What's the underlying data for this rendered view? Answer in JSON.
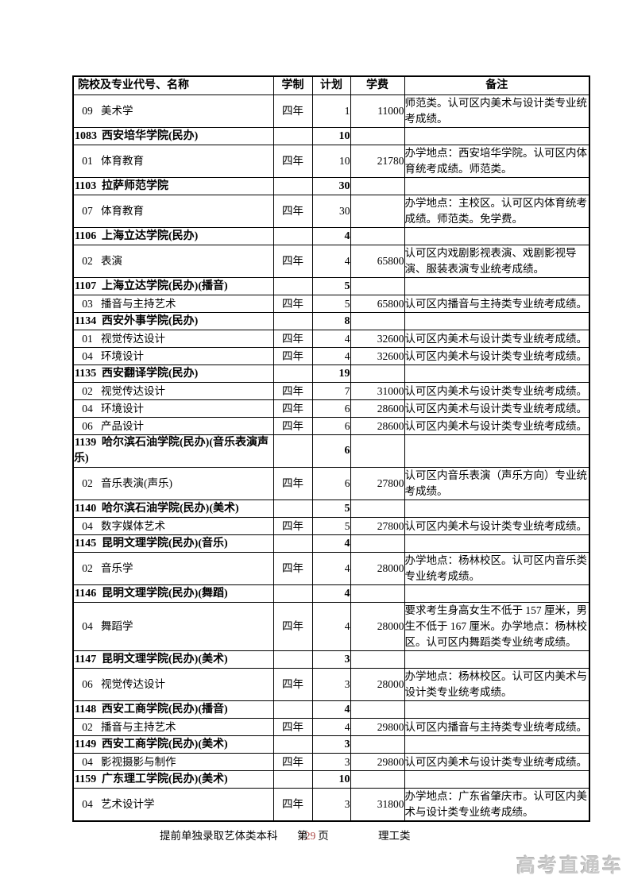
{
  "table": {
    "columns": [
      "院校及专业代号、名称",
      "学制",
      "计划",
      "学费",
      "备注"
    ],
    "rows": [
      {
        "type": "major",
        "code": "09",
        "name": "美术学",
        "duration": "四年",
        "plan": "1",
        "tuition": "11000",
        "remark": "师范类。认可区内美术与设计类专业统考成绩。"
      },
      {
        "type": "institution",
        "code": "1083",
        "name": "西安培华学院(民办)",
        "duration": "",
        "plan": "10",
        "tuition": "",
        "remark": ""
      },
      {
        "type": "major",
        "code": "01",
        "name": "体育教育",
        "duration": "四年",
        "plan": "10",
        "tuition": "21780",
        "remark": "办学地点：西安培华学院。认可区内体育统考成绩。师范类。"
      },
      {
        "type": "institution",
        "code": "1103",
        "name": "拉萨师范学院",
        "duration": "",
        "plan": "30",
        "tuition": "",
        "remark": ""
      },
      {
        "type": "major",
        "code": "07",
        "name": "体育教育",
        "duration": "四年",
        "plan": "30",
        "tuition": "",
        "remark": "办学地点：主校区。认可区内体育统考成绩。师范类。免学费。"
      },
      {
        "type": "institution",
        "code": "1106",
        "name": "上海立达学院(民办)",
        "duration": "",
        "plan": "4",
        "tuition": "",
        "remark": ""
      },
      {
        "type": "major",
        "code": "02",
        "name": "表演",
        "duration": "四年",
        "plan": "4",
        "tuition": "65800",
        "remark": "认可区内戏剧影视表演、戏剧影视导演、服装表演专业统考成绩。"
      },
      {
        "type": "institution",
        "code": "1107",
        "name": "上海立达学院(民办)(播音)",
        "duration": "",
        "plan": "5",
        "tuition": "",
        "remark": ""
      },
      {
        "type": "major",
        "code": "03",
        "name": "播音与主持艺术",
        "duration": "四年",
        "plan": "5",
        "tuition": "65800",
        "remark": "认可区内播音与主持类专业统考成绩。"
      },
      {
        "type": "institution",
        "code": "1134",
        "name": "西安外事学院(民办)",
        "duration": "",
        "plan": "8",
        "tuition": "",
        "remark": ""
      },
      {
        "type": "major",
        "code": "01",
        "name": "视觉传达设计",
        "duration": "四年",
        "plan": "4",
        "tuition": "32600",
        "remark": "认可区内美术与设计类专业统考成绩。"
      },
      {
        "type": "major",
        "code": "04",
        "name": "环境设计",
        "duration": "四年",
        "plan": "4",
        "tuition": "32600",
        "remark": "认可区内美术与设计类专业统考成绩。"
      },
      {
        "type": "institution",
        "code": "1135",
        "name": "西安翻译学院(民办)",
        "duration": "",
        "plan": "19",
        "tuition": "",
        "remark": ""
      },
      {
        "type": "major",
        "code": "02",
        "name": "视觉传达设计",
        "duration": "四年",
        "plan": "7",
        "tuition": "31000",
        "remark": "认可区内美术与设计类专业统考成绩。"
      },
      {
        "type": "major",
        "code": "04",
        "name": "环境设计",
        "duration": "四年",
        "plan": "6",
        "tuition": "28600",
        "remark": "认可区内美术与设计类专业统考成绩。"
      },
      {
        "type": "major",
        "code": "06",
        "name": "产品设计",
        "duration": "四年",
        "plan": "6",
        "tuition": "28600",
        "remark": "认可区内美术与设计类专业统考成绩。"
      },
      {
        "type": "institution",
        "code": "1139",
        "name": "哈尔滨石油学院(民办)(音乐表演声乐)",
        "duration": "",
        "plan": "6",
        "tuition": "",
        "remark": ""
      },
      {
        "type": "major",
        "code": "02",
        "name": "音乐表演(声乐)",
        "duration": "四年",
        "plan": "6",
        "tuition": "27800",
        "remark": "认可区内音乐表演（声乐方向）专业统考成绩。"
      },
      {
        "type": "institution",
        "code": "1140",
        "name": "哈尔滨石油学院(民办)(美术)",
        "duration": "",
        "plan": "5",
        "tuition": "",
        "remark": ""
      },
      {
        "type": "major",
        "code": "04",
        "name": "数字媒体艺术",
        "duration": "四年",
        "plan": "5",
        "tuition": "27800",
        "remark": "认可区内美术与设计类专业统考成绩。"
      },
      {
        "type": "institution",
        "code": "1145",
        "name": "昆明文理学院(民办)(音乐)",
        "duration": "",
        "plan": "4",
        "tuition": "",
        "remark": ""
      },
      {
        "type": "major",
        "code": "02",
        "name": "音乐学",
        "duration": "四年",
        "plan": "4",
        "tuition": "28000",
        "remark": "办学地点：杨林校区。认可区内音乐类专业统考成绩。"
      },
      {
        "type": "institution",
        "code": "1146",
        "name": "昆明文理学院(民办)(舞蹈)",
        "duration": "",
        "plan": "4",
        "tuition": "",
        "remark": ""
      },
      {
        "type": "major",
        "code": "04",
        "name": "舞蹈学",
        "duration": "四年",
        "plan": "4",
        "tuition": "28000",
        "remark": "要求考生身高女生不低于 157 厘米，男生不低于 167 厘米。办学地点：杨林校区。认可区内舞蹈类专业统考成绩。"
      },
      {
        "type": "institution",
        "code": "1147",
        "name": "昆明文理学院(民办)(美术)",
        "duration": "",
        "plan": "3",
        "tuition": "",
        "remark": ""
      },
      {
        "type": "major",
        "code": "06",
        "name": "视觉传达设计",
        "duration": "四年",
        "plan": "3",
        "tuition": "28000",
        "remark": "办学地点：杨林校区。认可区内美术与设计类专业统考成绩。"
      },
      {
        "type": "institution",
        "code": "1148",
        "name": "西安工商学院(民办)(播音)",
        "duration": "",
        "plan": "4",
        "tuition": "",
        "remark": ""
      },
      {
        "type": "major",
        "code": "02",
        "name": "播音与主持艺术",
        "duration": "四年",
        "plan": "4",
        "tuition": "29800",
        "remark": "认可区内播音与主持类专业统考成绩。"
      },
      {
        "type": "institution",
        "code": "1149",
        "name": "西安工商学院(民办)(美术)",
        "duration": "",
        "plan": "3",
        "tuition": "",
        "remark": ""
      },
      {
        "type": "major",
        "code": "04",
        "name": "影视摄影与制作",
        "duration": "四年",
        "plan": "3",
        "tuition": "29800",
        "remark": "认可区内美术与设计类专业统考成绩。"
      },
      {
        "type": "institution",
        "code": "1159",
        "name": "广东理工学院(民办)(美术)",
        "duration": "",
        "plan": "10",
        "tuition": "",
        "remark": ""
      },
      {
        "type": "major",
        "code": "04",
        "name": "艺术设计学",
        "duration": "四年",
        "plan": "3",
        "tuition": "31800",
        "remark": "办学地点：广东省肇庆市。认可区内美术与设计类专业统考成绩。"
      }
    ]
  },
  "footer": {
    "section": "提前单独录取艺体类本科",
    "page_prefix": "第",
    "page_number": "129",
    "page_suffix": "页",
    "category": "理工类"
  },
  "watermark": {
    "text": "高考直通车"
  },
  "colors": {
    "page_number": "#a94442",
    "watermark": "#c8c8c8",
    "border": "#000000",
    "text": "#000000",
    "background": "#ffffff"
  }
}
